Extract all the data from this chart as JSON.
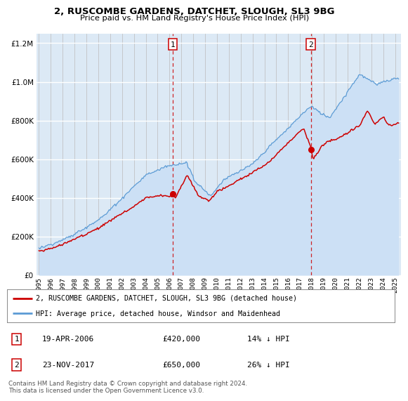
{
  "title1": "2, RUSCOMBE GARDENS, DATCHET, SLOUGH, SL3 9BG",
  "title2": "Price paid vs. HM Land Registry's House Price Index (HPI)",
  "red_label": "2, RUSCOMBE GARDENS, DATCHET, SLOUGH, SL3 9BG (detached house)",
  "blue_label": "HPI: Average price, detached house, Windsor and Maidenhead",
  "annotation1": {
    "num": "1",
    "date": "19-APR-2006",
    "price": "£420,000",
    "pct": "14% ↓ HPI",
    "x_year": 2006.29
  },
  "annotation2": {
    "num": "2",
    "date": "23-NOV-2017",
    "price": "£650,000",
    "pct": "26% ↓ HPI",
    "x_year": 2017.9
  },
  "footnote": "Contains HM Land Registry data © Crown copyright and database right 2024.\nThis data is licensed under the Open Government Licence v3.0.",
  "ylim": [
    0,
    1250000
  ],
  "yticks": [
    0,
    200000,
    400000,
    600000,
    800000,
    1000000,
    1200000
  ],
  "xlim_start": 1994.8,
  "xlim_end": 2025.5,
  "bg_color": "#dce9f5",
  "plot_bg": "#ffffff",
  "line_color_red": "#cc0000",
  "line_color_blue": "#5b9bd5",
  "fill_color_blue": "#cce0f5"
}
